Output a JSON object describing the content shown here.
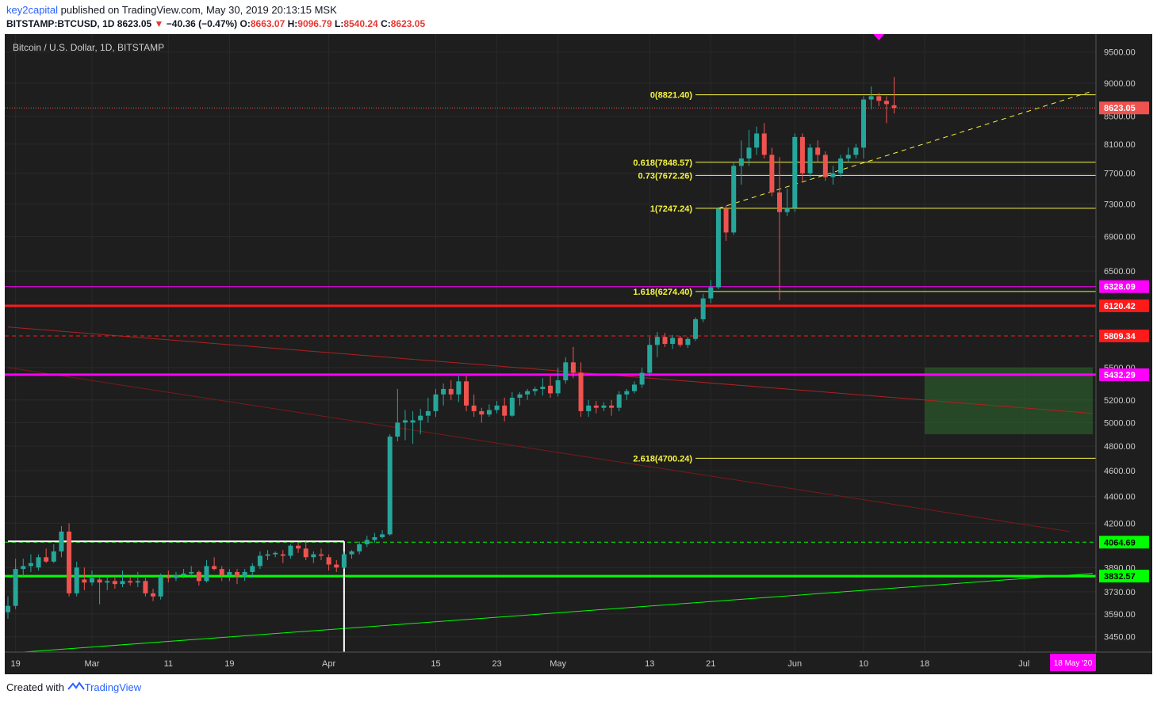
{
  "header": {
    "author": "key2capital",
    "published_text": " published on TradingView.com, May 30, 2019 20:13:15 MSK"
  },
  "symbol_line": {
    "symbol": "BITSTAMP:BTCUSD, 1D",
    "last": "8623.05",
    "change_arrow": "▼",
    "change": "−40.36 (−0.47%)",
    "open_label": "O:",
    "open": "8663.07",
    "high_label": "H:",
    "high": "9096.79",
    "low_label": "L:",
    "low": "8540.24",
    "close_label": "C:",
    "close": "8623.05"
  },
  "footer": {
    "created_with": "Created with",
    "brand": "TradingView"
  },
  "colors": {
    "background": "#1e1e1e",
    "grid": "#2a2a2a",
    "axis_text": "#cccccc",
    "up": "#26a69a",
    "down": "#ef5350",
    "fib": "#f5f542",
    "magenta": "#ff00ff",
    "red_level": "#ff1a1a",
    "green_level": "#00ff00"
  },
  "chart_data": {
    "type": "candlestick",
    "title": "Bitcoin / U.S. Dollar, 1D, BITSTAMP",
    "y_scale": "log",
    "ylim": [
      3360,
      9800
    ],
    "y_ticks": [
      3450,
      3590,
      3730,
      3890,
      4200,
      4400,
      4600,
      4800,
      5000,
      5200,
      5500,
      6500,
      6900,
      7300,
      7700,
      8100,
      8500,
      9000,
      9500
    ],
    "y_tick_labels": [
      "3450.00",
      "3590.00",
      "3730.00",
      "3890.00",
      "4200.00",
      "4400.00",
      "4600.00",
      "4800.00",
      "5000.00",
      "5200.00",
      "5500.00",
      "6500.00",
      "6900.00",
      "7300.00",
      "7700.00",
      "8100.00",
      "8500.00",
      "9000.00",
      "9500.00"
    ],
    "x_ticks": [
      {
        "label": "19",
        "date": "2019-02-19"
      },
      {
        "label": "Mar",
        "date": "2019-03-01"
      },
      {
        "label": "11",
        "date": "2019-03-11"
      },
      {
        "label": "19",
        "date": "2019-03-19"
      },
      {
        "label": "Apr",
        "date": "2019-04-01"
      },
      {
        "label": "15",
        "date": "2019-04-15"
      },
      {
        "label": "23",
        "date": "2019-04-23"
      },
      {
        "label": "May",
        "date": "2019-05-01"
      },
      {
        "label": "13",
        "date": "2019-05-13"
      },
      {
        "label": "21",
        "date": "2019-05-21"
      },
      {
        "label": "Jun",
        "date": "2019-06-01"
      },
      {
        "label": "10",
        "date": "2019-06-10"
      },
      {
        "label": "18",
        "date": "2019-06-18"
      },
      {
        "label": "Jul",
        "date": "2019-07-01"
      }
    ],
    "x_range": [
      "2019-02-18",
      "2019-07-10"
    ],
    "x_cursor_label": "18 May '20",
    "candles": [
      {
        "d": "2019-02-18",
        "o": 3600,
        "h": 3700,
        "l": 3560,
        "c": 3640
      },
      {
        "d": "2019-02-19",
        "o": 3640,
        "h": 3950,
        "l": 3620,
        "c": 3880
      },
      {
        "d": "2019-02-20",
        "o": 3880,
        "h": 3950,
        "l": 3830,
        "c": 3900
      },
      {
        "d": "2019-02-21",
        "o": 3900,
        "h": 3980,
        "l": 3860,
        "c": 3920
      },
      {
        "d": "2019-02-22",
        "o": 3890,
        "h": 3980,
        "l": 3870,
        "c": 3960
      },
      {
        "d": "2019-02-23",
        "o": 3960,
        "h": 4020,
        "l": 3920,
        "c": 3930
      },
      {
        "d": "2019-02-24",
        "o": 3930,
        "h": 4050,
        "l": 3920,
        "c": 4000
      },
      {
        "d": "2019-02-25",
        "o": 4000,
        "h": 4180,
        "l": 3960,
        "c": 4140
      },
      {
        "d": "2019-02-26",
        "o": 4140,
        "h": 4200,
        "l": 3700,
        "c": 3720
      },
      {
        "d": "2019-02-27",
        "o": 3720,
        "h": 3930,
        "l": 3700,
        "c": 3890
      },
      {
        "d": "2019-02-28",
        "o": 3810,
        "h": 3890,
        "l": 3740,
        "c": 3790
      },
      {
        "d": "2019-03-01",
        "o": 3790,
        "h": 3870,
        "l": 3770,
        "c": 3820
      },
      {
        "d": "2019-03-02",
        "o": 3810,
        "h": 3830,
        "l": 3650,
        "c": 3790
      },
      {
        "d": "2019-03-03",
        "o": 3790,
        "h": 3830,
        "l": 3740,
        "c": 3800
      },
      {
        "d": "2019-03-04",
        "o": 3800,
        "h": 3830,
        "l": 3750,
        "c": 3780
      },
      {
        "d": "2019-03-05",
        "o": 3780,
        "h": 3870,
        "l": 3760,
        "c": 3800
      },
      {
        "d": "2019-03-06",
        "o": 3800,
        "h": 3830,
        "l": 3770,
        "c": 3790
      },
      {
        "d": "2019-03-07",
        "o": 3790,
        "h": 3860,
        "l": 3760,
        "c": 3800
      },
      {
        "d": "2019-03-08",
        "o": 3800,
        "h": 3820,
        "l": 3700,
        "c": 3720
      },
      {
        "d": "2019-03-09",
        "o": 3720,
        "h": 3750,
        "l": 3670,
        "c": 3700
      },
      {
        "d": "2019-03-10",
        "o": 3700,
        "h": 3850,
        "l": 3680,
        "c": 3830
      },
      {
        "d": "2019-03-11",
        "o": 3830,
        "h": 3870,
        "l": 3790,
        "c": 3820
      },
      {
        "d": "2019-03-12",
        "o": 3820,
        "h": 3860,
        "l": 3800,
        "c": 3840
      },
      {
        "d": "2019-03-13",
        "o": 3840,
        "h": 3880,
        "l": 3820,
        "c": 3850
      },
      {
        "d": "2019-03-14",
        "o": 3850,
        "h": 3900,
        "l": 3820,
        "c": 3860
      },
      {
        "d": "2019-03-15",
        "o": 3860,
        "h": 3870,
        "l": 3770,
        "c": 3800
      },
      {
        "d": "2019-03-16",
        "o": 3800,
        "h": 3940,
        "l": 3790,
        "c": 3900
      },
      {
        "d": "2019-03-17",
        "o": 3900,
        "h": 3960,
        "l": 3870,
        "c": 3880
      },
      {
        "d": "2019-03-18",
        "o": 3880,
        "h": 3900,
        "l": 3800,
        "c": 3840
      },
      {
        "d": "2019-03-19",
        "o": 3840,
        "h": 3880,
        "l": 3800,
        "c": 3860
      },
      {
        "d": "2019-03-20",
        "o": 3860,
        "h": 3880,
        "l": 3780,
        "c": 3830
      },
      {
        "d": "2019-03-21",
        "o": 3830,
        "h": 3880,
        "l": 3800,
        "c": 3860
      },
      {
        "d": "2019-03-22",
        "o": 3860,
        "h": 3920,
        "l": 3820,
        "c": 3900
      },
      {
        "d": "2019-03-23",
        "o": 3900,
        "h": 4000,
        "l": 3880,
        "c": 3970
      },
      {
        "d": "2019-03-24",
        "o": 3970,
        "h": 4010,
        "l": 3940,
        "c": 3980
      },
      {
        "d": "2019-03-25",
        "o": 3980,
        "h": 4000,
        "l": 3960,
        "c": 3990
      },
      {
        "d": "2019-03-26",
        "o": 3980,
        "h": 4010,
        "l": 3920,
        "c": 3970
      },
      {
        "d": "2019-03-27",
        "o": 3970,
        "h": 4050,
        "l": 3950,
        "c": 4040
      },
      {
        "d": "2019-03-28",
        "o": 4040,
        "h": 4060,
        "l": 3990,
        "c": 4020
      },
      {
        "d": "2019-03-29",
        "o": 4020,
        "h": 4070,
        "l": 3940,
        "c": 3960
      },
      {
        "d": "2019-03-30",
        "o": 3960,
        "h": 4000,
        "l": 3920,
        "c": 3980
      },
      {
        "d": "2019-03-31",
        "o": 3980,
        "h": 4020,
        "l": 3940,
        "c": 3970
      },
      {
        "d": "2019-04-01",
        "o": 3960,
        "h": 3980,
        "l": 3870,
        "c": 3910
      },
      {
        "d": "2019-04-02",
        "o": 3910,
        "h": 3940,
        "l": 3860,
        "c": 3890
      },
      {
        "d": "2019-04-03",
        "o": 3890,
        "h": 4000,
        "l": 3880,
        "c": 3980
      },
      {
        "d": "2019-04-04",
        "o": 3980,
        "h": 4010,
        "l": 3950,
        "c": 4000
      },
      {
        "d": "2019-04-05",
        "o": 4000,
        "h": 4070,
        "l": 3980,
        "c": 4050
      },
      {
        "d": "2019-04-06",
        "o": 4050,
        "h": 4110,
        "l": 4030,
        "c": 4080
      },
      {
        "d": "2019-04-07",
        "o": 4080,
        "h": 4130,
        "l": 4060,
        "c": 4100
      },
      {
        "d": "2019-04-08",
        "o": 4100,
        "h": 4150,
        "l": 4090,
        "c": 4120
      },
      {
        "d": "2019-04-09",
        "o": 4120,
        "h": 4900,
        "l": 4110,
        "c": 4880
      },
      {
        "d": "2019-04-10",
        "o": 4880,
        "h": 5300,
        "l": 4840,
        "c": 5000
      },
      {
        "d": "2019-04-11",
        "o": 5000,
        "h": 5110,
        "l": 4850,
        "c": 5020
      },
      {
        "d": "2019-04-12",
        "o": 5000,
        "h": 5100,
        "l": 4820,
        "c": 5020
      },
      {
        "d": "2019-04-13",
        "o": 5020,
        "h": 5120,
        "l": 4900,
        "c": 5060
      },
      {
        "d": "2019-04-14",
        "o": 5060,
        "h": 5220,
        "l": 5000,
        "c": 5100
      },
      {
        "d": "2019-04-15",
        "o": 5100,
        "h": 5300,
        "l": 5050,
        "c": 5250
      },
      {
        "d": "2019-04-16",
        "o": 5250,
        "h": 5350,
        "l": 5150,
        "c": 5300
      },
      {
        "d": "2019-04-17",
        "o": 5300,
        "h": 5380,
        "l": 5200,
        "c": 5250
      },
      {
        "d": "2019-04-18",
        "o": 5250,
        "h": 5420,
        "l": 5180,
        "c": 5370
      },
      {
        "d": "2019-04-19",
        "o": 5370,
        "h": 5420,
        "l": 5100,
        "c": 5150
      },
      {
        "d": "2019-04-20",
        "o": 5150,
        "h": 5250,
        "l": 5050,
        "c": 5100
      },
      {
        "d": "2019-04-21",
        "o": 5100,
        "h": 5130,
        "l": 5000,
        "c": 5070
      },
      {
        "d": "2019-04-22",
        "o": 5070,
        "h": 5160,
        "l": 5050,
        "c": 5110
      },
      {
        "d": "2019-04-23",
        "o": 5110,
        "h": 5190,
        "l": 5080,
        "c": 5150
      },
      {
        "d": "2019-04-24",
        "o": 5150,
        "h": 5220,
        "l": 5010,
        "c": 5060
      },
      {
        "d": "2019-04-25",
        "o": 5060,
        "h": 5270,
        "l": 5050,
        "c": 5220
      },
      {
        "d": "2019-04-26",
        "o": 5220,
        "h": 5270,
        "l": 5150,
        "c": 5250
      },
      {
        "d": "2019-04-27",
        "o": 5250,
        "h": 5300,
        "l": 5200,
        "c": 5280
      },
      {
        "d": "2019-04-28",
        "o": 5280,
        "h": 5320,
        "l": 5240,
        "c": 5300
      },
      {
        "d": "2019-04-29",
        "o": 5300,
        "h": 5400,
        "l": 5240,
        "c": 5320
      },
      {
        "d": "2019-04-30",
        "o": 5330,
        "h": 5420,
        "l": 5220,
        "c": 5260
      },
      {
        "d": "2019-05-01",
        "o": 5260,
        "h": 5500,
        "l": 5230,
        "c": 5380
      },
      {
        "d": "2019-05-02",
        "o": 5380,
        "h": 5600,
        "l": 5350,
        "c": 5550
      },
      {
        "d": "2019-05-03",
        "o": 5550,
        "h": 5700,
        "l": 5400,
        "c": 5450
      },
      {
        "d": "2019-05-04",
        "o": 5450,
        "h": 5550,
        "l": 5050,
        "c": 5100
      },
      {
        "d": "2019-05-05",
        "o": 5100,
        "h": 5200,
        "l": 5050,
        "c": 5150
      },
      {
        "d": "2019-05-06",
        "o": 5150,
        "h": 5190,
        "l": 5080,
        "c": 5130
      },
      {
        "d": "2019-05-07",
        "o": 5130,
        "h": 5180,
        "l": 5100,
        "c": 5150
      },
      {
        "d": "2019-05-08",
        "o": 5150,
        "h": 5200,
        "l": 5060,
        "c": 5130
      },
      {
        "d": "2019-05-09",
        "o": 5130,
        "h": 5280,
        "l": 5100,
        "c": 5250
      },
      {
        "d": "2019-05-10",
        "o": 5250,
        "h": 5300,
        "l": 5200,
        "c": 5280
      },
      {
        "d": "2019-05-11",
        "o": 5280,
        "h": 5370,
        "l": 5260,
        "c": 5340
      },
      {
        "d": "2019-05-12",
        "o": 5340,
        "h": 5500,
        "l": 5310,
        "c": 5450
      },
      {
        "d": "2019-05-13",
        "o": 5450,
        "h": 5800,
        "l": 5420,
        "c": 5720
      },
      {
        "d": "2019-05-14",
        "o": 5720,
        "h": 5850,
        "l": 5600,
        "c": 5800
      },
      {
        "d": "2019-05-15",
        "o": 5800,
        "h": 5840,
        "l": 5700,
        "c": 5730
      },
      {
        "d": "2019-05-16",
        "o": 5730,
        "h": 5820,
        "l": 5680,
        "c": 5790
      },
      {
        "d": "2019-05-17",
        "o": 5790,
        "h": 5810,
        "l": 5700,
        "c": 5720
      },
      {
        "d": "2019-05-18",
        "o": 5720,
        "h": 5800,
        "l": 5690,
        "c": 5780
      },
      {
        "d": "2019-05-19",
        "o": 5780,
        "h": 6000,
        "l": 5760,
        "c": 5980
      },
      {
        "d": "2019-05-20",
        "o": 5980,
        "h": 6250,
        "l": 5950,
        "c": 6200
      },
      {
        "d": "2019-05-21",
        "o": 6200,
        "h": 6400,
        "l": 6150,
        "c": 6320
      },
      {
        "d": "2019-05-22",
        "o": 6320,
        "h": 7260,
        "l": 6300,
        "c": 7240
      },
      {
        "d": "2019-05-23",
        "o": 7240,
        "h": 7280,
        "l": 6850,
        "c": 6950
      },
      {
        "d": "2019-05-24",
        "o": 6950,
        "h": 7850,
        "l": 6920,
        "c": 7800
      },
      {
        "d": "2019-05-25",
        "o": 7800,
        "h": 8150,
        "l": 7550,
        "c": 7900
      },
      {
        "d": "2019-05-26",
        "o": 7900,
        "h": 8300,
        "l": 7800,
        "c": 8050
      },
      {
        "d": "2019-05-27",
        "o": 8050,
        "h": 8350,
        "l": 7950,
        "c": 8250
      },
      {
        "d": "2019-05-28",
        "o": 8250,
        "h": 8400,
        "l": 7900,
        "c": 7950
      },
      {
        "d": "2019-05-29",
        "o": 7950,
        "h": 8050,
        "l": 7400,
        "c": 7450
      },
      {
        "d": "2019-05-30",
        "o": 7450,
        "h": 7920,
        "l": 6180,
        "c": 7200
      },
      {
        "d": "2019-05-31",
        "o": 7200,
        "h": 7500,
        "l": 7150,
        "c": 7250
      },
      {
        "d": "2019-06-01",
        "o": 7250,
        "h": 8250,
        "l": 7200,
        "c": 8200
      },
      {
        "d": "2019-06-02",
        "o": 8200,
        "h": 8250,
        "l": 7600,
        "c": 7700
      },
      {
        "d": "2019-06-03",
        "o": 7700,
        "h": 8100,
        "l": 7650,
        "c": 8050
      },
      {
        "d": "2019-06-04",
        "o": 8050,
        "h": 8150,
        "l": 7850,
        "c": 7950
      },
      {
        "d": "2019-06-05",
        "o": 7950,
        "h": 8000,
        "l": 7600,
        "c": 7650
      },
      {
        "d": "2019-06-06",
        "o": 7650,
        "h": 7800,
        "l": 7550,
        "c": 7700
      },
      {
        "d": "2019-06-07",
        "o": 7700,
        "h": 7950,
        "l": 7650,
        "c": 7900
      },
      {
        "d": "2019-06-08",
        "o": 7900,
        "h": 8050,
        "l": 7850,
        "c": 7950
      },
      {
        "d": "2019-06-09",
        "o": 7950,
        "h": 8100,
        "l": 7900,
        "c": 8050
      },
      {
        "d": "2019-06-10",
        "o": 8050,
        "h": 8800,
        "l": 7900,
        "c": 8750
      },
      {
        "d": "2019-06-11",
        "o": 8750,
        "h": 8950,
        "l": 8600,
        "c": 8800
      },
      {
        "d": "2019-06-12",
        "o": 8800,
        "h": 8850,
        "l": 8650,
        "c": 8730
      },
      {
        "d": "2019-06-13",
        "o": 8730,
        "h": 8800,
        "l": 8400,
        "c": 8680
      },
      {
        "d": "2019-06-14",
        "o": 8663,
        "h": 9097,
        "l": 8540,
        "c": 8623
      }
    ],
    "horizontal_levels": [
      {
        "label": "0(8821.40)",
        "value": 8821.4,
        "style": "fib"
      },
      {
        "label": "0.618(7848.57)",
        "value": 7848.57,
        "style": "fib"
      },
      {
        "label": "0.73(7672.26)",
        "value": 7672.26,
        "style": "fib"
      },
      {
        "label": "1(7247.24)",
        "value": 7247.24,
        "style": "fib"
      },
      {
        "label": "1.618(6274.40)",
        "value": 6274.4,
        "style": "fib"
      },
      {
        "label": "2.618(4700.24)",
        "value": 4700.24,
        "style": "fib"
      }
    ],
    "price_tags": [
      {
        "text": "8623.05",
        "value": 8623.05,
        "bg": "#ef5350",
        "fg": "#ffffff",
        "line": "dotted-red"
      },
      {
        "text": "6328.09",
        "value": 6328.09,
        "bg": "#ff00ff",
        "fg": "#ffffff",
        "line": "magenta"
      },
      {
        "text": "6120.42",
        "value": 6120.42,
        "bg": "#ff1a1a",
        "fg": "#ffffff",
        "line": "red-thick"
      },
      {
        "text": "5809.34",
        "value": 5809.34,
        "bg": "#ff1a1a",
        "fg": "#ffffff",
        "line": "red-dashed"
      },
      {
        "text": "5432.29",
        "value": 5432.29,
        "bg": "#ff00ff",
        "fg": "#ffffff",
        "line": "magenta-thick"
      },
      {
        "text": "4064.69",
        "value": 4064.69,
        "bg": "#00ff00",
        "fg": "#000000",
        "line": "green-dashed"
      },
      {
        "text": "3832.57",
        "value": 3832.57,
        "bg": "#00ff00",
        "fg": "#000000",
        "line": "green-thick"
      }
    ],
    "trend_lines": [
      {
        "name": "fib-base-dashed",
        "from": {
          "d": "2019-05-22",
          "v": 7247.24
        },
        "to": {
          "d": "2019-07-10",
          "v": 8880
        },
        "style": "yellow-dashed"
      },
      {
        "name": "red-downtrend",
        "from": {
          "d": "2019-02-18",
          "v": 5900
        },
        "to": {
          "d": "2019-07-10",
          "v": 5080
        },
        "style": "red-thin"
      },
      {
        "name": "red-downtrend-2",
        "from": {
          "d": "2019-02-18",
          "v": 5500
        },
        "to": {
          "d": "2019-07-07",
          "v": 4140
        },
        "style": "red-faint"
      },
      {
        "name": "green-uptrend",
        "from": {
          "d": "2019-02-20",
          "v": 3360
        },
        "to": {
          "d": "2019-07-10",
          "v": 3850
        },
        "style": "green-thin"
      }
    ],
    "range_box": {
      "from": "2019-06-18",
      "to": "2019-07-10",
      "low": 4900,
      "high": 5500
    },
    "white_box": {
      "from": "2019-02-18",
      "to": "2019-04-03",
      "top": 4070,
      "bottom_line_to": 3360
    }
  }
}
